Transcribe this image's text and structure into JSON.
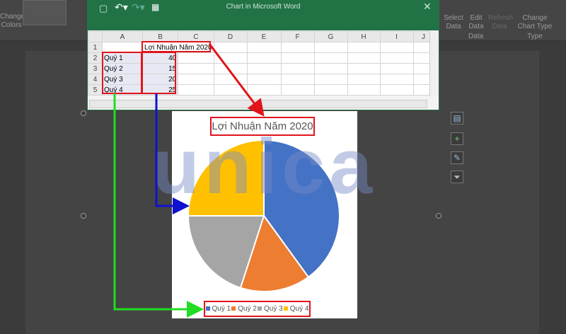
{
  "ribbon": {
    "change_colors": "Change Colors",
    "select_data": "Select Data",
    "edit_data": "Edit Data",
    "refresh_data": "Refresh Data",
    "group_data": "Data",
    "change_chart_type": "Change Chart Type",
    "group_type": "Type"
  },
  "excel": {
    "title": "Chart in Microsoft Word",
    "columns": [
      "A",
      "B",
      "C",
      "D",
      "E",
      "F",
      "G",
      "H",
      "I",
      "J"
    ],
    "rows": [
      [
        "1",
        "",
        "Lợi Nhuận Năm 2020",
        ""
      ],
      [
        "2",
        "Quý 1",
        "40",
        ""
      ],
      [
        "3",
        "Quý 2",
        "15",
        ""
      ],
      [
        "4",
        "Quý 3",
        "20",
        ""
      ],
      [
        "5",
        "Quý 4",
        "25",
        ""
      ]
    ]
  },
  "watermark": "unica",
  "colors": {
    "excel_green": "#217346",
    "annotation_red": "#e0141b",
    "arrow_blue": "#1010d0",
    "arrow_green": "#22dd22"
  },
  "chart_data": {
    "type": "pie",
    "title": "Lợi Nhuận Năm 2020",
    "categories": [
      "Quý 1",
      "Quý 2",
      "Quý 3",
      "Quý 4"
    ],
    "values": [
      40,
      15,
      20,
      25
    ],
    "colors": [
      "#4472c4",
      "#ed7d31",
      "#a5a5a5",
      "#ffc000"
    ],
    "legend": "bottom"
  }
}
